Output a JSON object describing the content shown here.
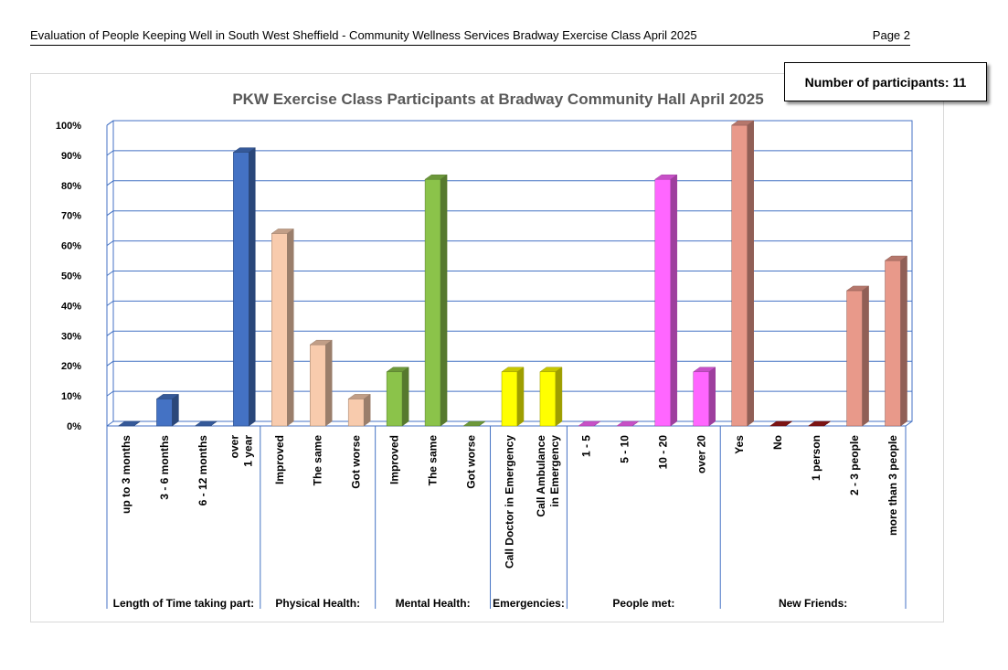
{
  "header": {
    "title": "Evaluation of People Keeping Well in South West Sheffield - Community Wellness Services Bradway Exercise Class   April 2025",
    "page": "Page 2"
  },
  "participants": {
    "label": "Number of participants:",
    "value": "11"
  },
  "chart_data": {
    "type": "bar",
    "title": "PKW Exercise Class Participants at Bradway Community Hall  April 2025",
    "ylim": [
      0,
      100
    ],
    "yticks": [
      "0%",
      "10%",
      "20%",
      "30%",
      "40%",
      "50%",
      "60%",
      "70%",
      "80%",
      "90%",
      "100%"
    ],
    "grid": true,
    "legend": "none",
    "groups": [
      {
        "name": "Length of Time taking part:",
        "color": "#4472C4",
        "categories": [
          [
            "up to 3 months"
          ],
          [
            "3 - 6 months"
          ],
          [
            "6 - 12 months"
          ],
          [
            "over",
            "1 year"
          ]
        ],
        "values": [
          0,
          9,
          0,
          91
        ]
      },
      {
        "name": "Physical Health:",
        "color": "#F8CBAD",
        "categories": [
          [
            "Improved"
          ],
          [
            "The same"
          ],
          [
            "Got worse"
          ]
        ],
        "values": [
          64,
          27,
          9
        ]
      },
      {
        "name": "Mental Health:",
        "color": "#8BC34A",
        "categories": [
          [
            "Improved"
          ],
          [
            "The same"
          ],
          [
            "Got worse"
          ]
        ],
        "values": [
          18,
          82,
          0
        ]
      },
      {
        "name": "Emergencies:",
        "color": "#FFFF00",
        "categories": [
          [
            "Call Doctor in Emergency"
          ],
          [
            "Call Ambulance",
            "in Emergency"
          ]
        ],
        "values": [
          18,
          18
        ]
      },
      {
        "name": "People met:",
        "color": "#FF66FF",
        "categories": [
          [
            "1 - 5"
          ],
          [
            "5 - 10"
          ],
          [
            "10 - 20"
          ],
          [
            "over 20"
          ]
        ],
        "values": [
          0,
          0,
          82,
          18
        ]
      },
      {
        "name": "New Friends:",
        "color": "#E8998A",
        "categories": [
          [
            "Yes"
          ],
          [
            "No"
          ],
          [
            "1 person"
          ],
          [
            "2 - 3 people"
          ],
          [
            "more than 3 people"
          ]
        ],
        "values": [
          100,
          0,
          0,
          45,
          55
        ],
        "zero_color": "#A01818"
      }
    ]
  }
}
